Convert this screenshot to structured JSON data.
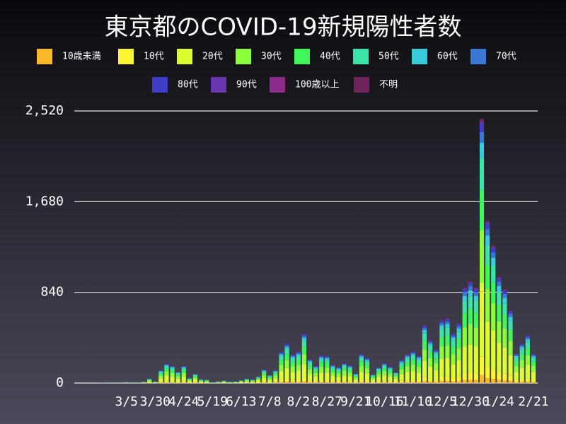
{
  "chart_data": {
    "type": "stacked_bar",
    "title": "東京都のCOVID-19新規陽性者数",
    "categories": [
      null,
      null,
      null,
      null,
      null,
      null,
      null,
      "3/5",
      null,
      null,
      null,
      null,
      "3/30",
      null,
      null,
      null,
      null,
      "4/24",
      null,
      null,
      null,
      null,
      "5/19",
      null,
      null,
      null,
      null,
      "6/13",
      null,
      null,
      null,
      null,
      "7/8",
      null,
      null,
      null,
      null,
      "8/2",
      null,
      null,
      null,
      null,
      "8/27",
      null,
      null,
      null,
      null,
      "9/21",
      null,
      null,
      null,
      null,
      "10/16",
      null,
      null,
      null,
      null,
      "11/10",
      null,
      null,
      null,
      null,
      "12/5",
      null,
      null,
      null,
      null,
      "12/30",
      null,
      null,
      null,
      null,
      "1/24",
      null,
      null,
      null,
      null,
      null,
      "2/21"
    ],
    "ylim": [
      0,
      2520
    ],
    "yticks": [
      0,
      840,
      {
        "value": 1680,
        "label": "1,680"
      },
      {
        "value": 2520,
        "label": "2,520"
      }
    ],
    "grid": true,
    "series": [
      {
        "name": "10歳未満",
        "color": "#fbb829",
        "values": [
          0,
          0,
          0,
          0,
          0,
          0,
          0,
          0,
          0,
          0,
          0,
          1,
          0,
          4,
          5,
          5,
          3,
          5,
          1,
          3,
          1,
          1,
          0,
          0,
          1,
          0,
          0,
          1,
          1,
          1,
          2,
          4,
          2,
          4,
          9,
          11,
          8,
          9,
          14,
          7,
          5,
          8,
          8,
          5,
          4,
          6,
          5,
          3,
          8,
          7,
          2,
          4,
          6,
          5,
          3,
          6,
          8,
          9,
          8,
          16,
          12,
          9,
          18,
          18,
          14,
          17,
          27,
          28,
          27,
          73,
          45,
          38,
          30,
          26,
          20,
          8,
          11,
          13,
          8
        ]
      },
      {
        "name": "10代",
        "color": "#fef531",
        "values": [
          0,
          0,
          0,
          0,
          0,
          0,
          0,
          0,
          0,
          0,
          1,
          3,
          1,
          8,
          13,
          11,
          7,
          11,
          3,
          6,
          3,
          2,
          0,
          1,
          2,
          1,
          1,
          2,
          3,
          2,
          4,
          9,
          5,
          8,
          20,
          26,
          19,
          20,
          32,
          16,
          11,
          18,
          18,
          12,
          10,
          13,
          11,
          6,
          19,
          16,
          6,
          10,
          13,
          11,
          7,
          15,
          19,
          21,
          18,
          38,
          28,
          22,
          41,
          42,
          32,
          39,
          62,
          66,
          62,
          171,
          105,
          89,
          69,
          61,
          47,
          19,
          26,
          31,
          19
        ]
      },
      {
        "name": "20代",
        "color": "#dcfd32",
        "values": [
          0,
          0,
          0,
          0,
          0,
          0,
          0,
          2,
          1,
          1,
          3,
          11,
          4,
          33,
          51,
          45,
          30,
          45,
          13,
          24,
          10,
          8,
          2,
          4,
          6,
          3,
          4,
          7,
          11,
          9,
          17,
          35,
          21,
          33,
          81,
          102,
          74,
          82,
          129,
          62,
          45,
          72,
          70,
          48,
          41,
          52,
          46,
          25,
          76,
          66,
          22,
          41,
          52,
          42,
          29,
          60,
          75,
          82,
          71,
          151,
          112,
          87,
          164,
          169,
          129,
          156,
          248,
          264,
          248,
          685,
          421,
          357,
          276,
          243,
          189,
          77,
          103,
          125,
          76
        ]
      },
      {
        "name": "30代",
        "color": "#8bff3c",
        "values": [
          0,
          0,
          0,
          0,
          0,
          0,
          0,
          1,
          1,
          1,
          2,
          8,
          3,
          24,
          36,
          32,
          21,
          32,
          9,
          17,
          7,
          6,
          1,
          3,
          4,
          2,
          3,
          5,
          8,
          6,
          12,
          25,
          15,
          24,
          58,
          73,
          53,
          58,
          92,
          44,
          32,
          52,
          50,
          34,
          30,
          37,
          33,
          18,
          54,
          47,
          16,
          29,
          37,
          30,
          20,
          43,
          54,
          59,
          51,
          108,
          80,
          62,
          117,
          120,
          92,
          111,
          177,
          189,
          177,
          489,
          300,
          255,
          197,
          174,
          135,
          55,
          74,
          89,
          54
        ]
      },
      {
        "name": "40代",
        "color": "#41f65b",
        "values": [
          0,
          0,
          0,
          0,
          1,
          0,
          1,
          1,
          1,
          1,
          2,
          6,
          2,
          18,
          27,
          24,
          16,
          24,
          7,
          13,
          5,
          5,
          1,
          2,
          3,
          2,
          2,
          4,
          6,
          5,
          9,
          19,
          11,
          18,
          44,
          55,
          40,
          44,
          69,
          33,
          24,
          39,
          38,
          26,
          22,
          28,
          24,
          13,
          41,
          35,
          12,
          22,
          28,
          23,
          15,
          32,
          40,
          44,
          38,
          81,
          60,
          47,
          88,
          90,
          69,
          83,
          133,
          142,
          133,
          367,
          225,
          191,
          148,
          130,
          101,
          41,
          55,
          67,
          41
        ]
      },
      {
        "name": "50代",
        "color": "#3ce4a8",
        "values": [
          0,
          0,
          1,
          0,
          1,
          1,
          0,
          2,
          1,
          1,
          1,
          5,
          2,
          14,
          22,
          19,
          13,
          19,
          6,
          10,
          4,
          4,
          1,
          2,
          3,
          1,
          2,
          3,
          5,
          4,
          7,
          15,
          9,
          14,
          35,
          44,
          32,
          35,
          55,
          27,
          19,
          31,
          30,
          20,
          18,
          22,
          20,
          11,
          32,
          28,
          10,
          18,
          22,
          18,
          12,
          26,
          32,
          35,
          31,
          65,
          48,
          37,
          70,
          72,
          55,
          67,
          106,
          113,
          106,
          294,
          180,
          153,
          118,
          104,
          81,
          33,
          44,
          53,
          33
        ]
      },
      {
        "name": "60代",
        "color": "#37cbdb",
        "values": [
          0,
          0,
          0,
          1,
          1,
          0,
          1,
          1,
          1,
          1,
          1,
          3,
          1,
          7,
          11,
          10,
          6,
          10,
          3,
          5,
          2,
          2,
          0,
          1,
          1,
          1,
          1,
          1,
          3,
          2,
          4,
          7,
          5,
          7,
          17,
          22,
          16,
          18,
          28,
          13,
          10,
          15,
          15,
          10,
          9,
          11,
          10,
          5,
          16,
          14,
          5,
          9,
          11,
          9,
          6,
          13,
          16,
          18,
          15,
          32,
          24,
          19,
          35,
          36,
          28,
          33,
          53,
          57,
          53,
          147,
          90,
          76,
          59,
          52,
          41,
          17,
          22,
          27,
          16
        ]
      },
      {
        "name": "70代",
        "color": "#3a78d6",
        "values": [
          0,
          0,
          0,
          1,
          0,
          0,
          0,
          1,
          1,
          0,
          1,
          2,
          0,
          5,
          7,
          6,
          4,
          6,
          2,
          3,
          1,
          1,
          0,
          1,
          1,
          1,
          0,
          1,
          2,
          1,
          2,
          5,
          3,
          5,
          12,
          15,
          11,
          12,
          18,
          9,
          6,
          10,
          10,
          7,
          6,
          7,
          7,
          4,
          11,
          9,
          3,
          6,
          7,
          6,
          4,
          9,
          11,
          12,
          10,
          22,
          16,
          12,
          23,
          24,
          18,
          22,
          35,
          38,
          35,
          98,
          60,
          51,
          39,
          35,
          27,
          11,
          15,
          18,
          11
        ]
      },
      {
        "name": "80代",
        "color": "#3d3dc7",
        "values": [
          0,
          0,
          0,
          0,
          0,
          0,
          0,
          0,
          0,
          0,
          0,
          1,
          0,
          4,
          5,
          5,
          3,
          5,
          1,
          3,
          1,
          1,
          0,
          0,
          1,
          0,
          0,
          0,
          1,
          1,
          2,
          4,
          2,
          4,
          9,
          11,
          8,
          9,
          14,
          7,
          5,
          8,
          8,
          5,
          4,
          6,
          5,
          3,
          8,
          7,
          2,
          4,
          6,
          5,
          3,
          6,
          8,
          9,
          8,
          16,
          12,
          9,
          18,
          18,
          14,
          17,
          27,
          28,
          27,
          73,
          45,
          38,
          30,
          26,
          20,
          8,
          11,
          13,
          8
        ]
      },
      {
        "name": "90代",
        "color": "#6a35b0",
        "values": [
          0,
          0,
          0,
          0,
          0,
          0,
          0,
          0,
          0,
          0,
          0,
          0,
          0,
          1,
          2,
          2,
          1,
          2,
          0,
          1,
          0,
          0,
          0,
          0,
          0,
          0,
          0,
          0,
          0,
          0,
          1,
          1,
          1,
          1,
          3,
          4,
          3,
          3,
          5,
          2,
          2,
          3,
          3,
          2,
          1,
          2,
          2,
          1,
          3,
          2,
          1,
          1,
          2,
          2,
          1,
          2,
          3,
          3,
          3,
          5,
          4,
          3,
          6,
          6,
          5,
          6,
          9,
          9,
          9,
          24,
          15,
          13,
          10,
          9,
          7,
          3,
          4,
          4,
          3
        ]
      },
      {
        "name": "100歳以上",
        "color": "#8e2c8d",
        "values": [
          0,
          0,
          0,
          0,
          0,
          0,
          0,
          0,
          0,
          0,
          0,
          0,
          0,
          0,
          0,
          0,
          0,
          0,
          0,
          0,
          0,
          0,
          0,
          0,
          0,
          0,
          0,
          0,
          0,
          0,
          0,
          0,
          0,
          0,
          0,
          0,
          0,
          0,
          0,
          0,
          0,
          0,
          0,
          0,
          0,
          0,
          0,
          0,
          0,
          0,
          0,
          0,
          0,
          0,
          0,
          0,
          0,
          0,
          0,
          0,
          0,
          0,
          0,
          0,
          0,
          0,
          0,
          0,
          0,
          1,
          0,
          0,
          0,
          0,
          0,
          0,
          0,
          0,
          0
        ]
      },
      {
        "name": "不明",
        "color": "#6e2456",
        "values": [
          0,
          0,
          0,
          0,
          0,
          0,
          0,
          0,
          0,
          0,
          0,
          1,
          0,
          1,
          2,
          2,
          1,
          2,
          1,
          1,
          0,
          0,
          0,
          0,
          0,
          0,
          0,
          0,
          1,
          0,
          0,
          1,
          1,
          1,
          3,
          4,
          3,
          3,
          5,
          2,
          2,
          3,
          3,
          2,
          1,
          2,
          2,
          1,
          3,
          2,
          1,
          1,
          2,
          2,
          1,
          2,
          3,
          3,
          3,
          5,
          4,
          3,
          6,
          6,
          5,
          6,
          9,
          9,
          9,
          24,
          15,
          13,
          10,
          9,
          7,
          3,
          4,
          4,
          3
        ]
      }
    ]
  }
}
